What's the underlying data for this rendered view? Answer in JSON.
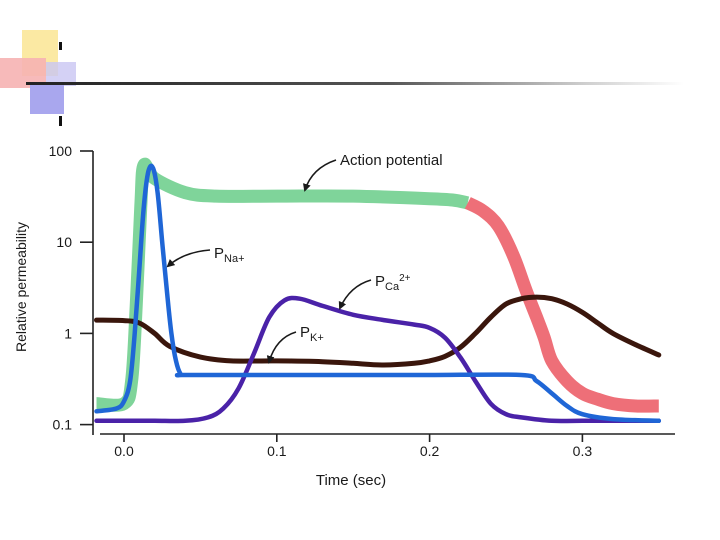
{
  "chart_data": {
    "type": "line",
    "title": "",
    "xlabel": "Time (sec)",
    "ylabel": "Relative permeability",
    "xscale": "linear",
    "yscale": "log",
    "xlim": [
      -0.02,
      0.36
    ],
    "ylim": [
      0.1,
      100
    ],
    "xticks": [
      0.0,
      0.1,
      0.2,
      0.3
    ],
    "xtick_labels": [
      "0.0",
      "0.1",
      "0.2",
      "0.3"
    ],
    "yticks": [
      0.1,
      1,
      10,
      100
    ],
    "ytick_labels": [
      "0.1",
      "1",
      "10",
      "100"
    ],
    "series": [
      {
        "name": "Action potential",
        "label": "Action potential",
        "color": "#7fd49a",
        "color2": "#ee6f78",
        "color_split_x": 0.225,
        "x": [
          -0.018,
          0.0,
          0.005,
          0.008,
          0.011,
          0.013,
          0.02,
          0.04,
          0.06,
          0.1,
          0.15,
          0.2,
          0.215,
          0.225,
          0.235,
          0.245,
          0.255,
          0.263,
          0.27,
          0.275,
          0.28,
          0.29,
          0.3,
          0.31,
          0.32,
          0.335,
          0.35
        ],
        "y": [
          0.17,
          0.17,
          0.3,
          2.0,
          25,
          70,
          50,
          35,
          32,
          32,
          32,
          30,
          29,
          27,
          22,
          15,
          7,
          3,
          1.5,
          0.9,
          0.5,
          0.3,
          0.22,
          0.19,
          0.17,
          0.16,
          0.16
        ]
      },
      {
        "name": "PNa+",
        "label_main": "P",
        "label_sub": "Na+",
        "color": "#1f66d6",
        "x": [
          -0.018,
          -0.005,
          0.0,
          0.004,
          0.007,
          0.01,
          0.013,
          0.016,
          0.019,
          0.022,
          0.025,
          0.028,
          0.031,
          0.034,
          0.037,
          0.04,
          0.1,
          0.15,
          0.2,
          0.26,
          0.27,
          0.28,
          0.29,
          0.3,
          0.32,
          0.35
        ],
        "y": [
          0.14,
          0.15,
          0.18,
          0.3,
          1.0,
          5,
          25,
          60,
          65,
          35,
          10,
          3,
          1.0,
          0.5,
          0.36,
          0.35,
          0.35,
          0.35,
          0.35,
          0.35,
          0.3,
          0.22,
          0.16,
          0.13,
          0.115,
          0.11
        ]
      },
      {
        "name": "PCa2+",
        "label_main": "P",
        "label_sub": "Ca",
        "label_sup": "2+",
        "color": "#4a22a8",
        "x": [
          -0.018,
          0.0,
          0.02,
          0.04,
          0.055,
          0.065,
          0.075,
          0.085,
          0.095,
          0.105,
          0.115,
          0.13,
          0.15,
          0.17,
          0.19,
          0.2,
          0.21,
          0.22,
          0.23,
          0.24,
          0.25,
          0.26,
          0.28,
          0.3,
          0.35
        ],
        "y": [
          0.11,
          0.11,
          0.11,
          0.11,
          0.12,
          0.15,
          0.25,
          0.6,
          1.5,
          2.3,
          2.4,
          2.0,
          1.6,
          1.4,
          1.25,
          1.15,
          0.9,
          0.55,
          0.3,
          0.17,
          0.13,
          0.12,
          0.11,
          0.11,
          0.11
        ]
      },
      {
        "name": "PK+",
        "label_main": "P",
        "label_sub": "K+",
        "color": "#3a160c",
        "x": [
          -0.018,
          0.0,
          0.01,
          0.02,
          0.03,
          0.05,
          0.07,
          0.1,
          0.13,
          0.15,
          0.17,
          0.19,
          0.2,
          0.21,
          0.22,
          0.23,
          0.24,
          0.25,
          0.26,
          0.27,
          0.28,
          0.29,
          0.3,
          0.31,
          0.32,
          0.335,
          0.35
        ],
        "y": [
          1.4,
          1.38,
          1.3,
          1.0,
          0.72,
          0.55,
          0.5,
          0.5,
          0.49,
          0.47,
          0.45,
          0.47,
          0.5,
          0.56,
          0.7,
          1.0,
          1.5,
          2.1,
          2.4,
          2.5,
          2.4,
          2.1,
          1.7,
          1.3,
          1.0,
          0.75,
          0.58
        ]
      }
    ]
  },
  "decor": {
    "yellow": "#fbe9a3",
    "pink": "#f6b3b3",
    "blue": "#a9a7ee"
  }
}
